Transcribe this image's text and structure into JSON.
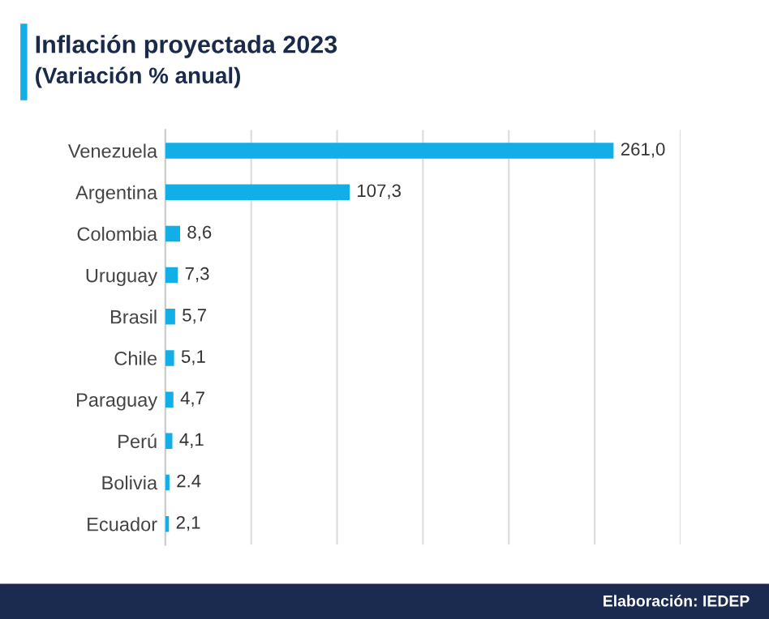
{
  "chart_data": {
    "type": "bar",
    "orientation": "horizontal",
    "title": "Inflación proyectada 2023",
    "subtitle": "(Variación % anual)",
    "categories": [
      "Venezuela",
      "Argentina",
      "Colombia",
      "Uruguay",
      "Brasil",
      "Chile",
      "Paraguay",
      "Perú",
      "Bolivia",
      "Ecuador"
    ],
    "values": [
      261.0,
      107.3,
      8.6,
      7.3,
      5.7,
      5.1,
      4.7,
      4.1,
      2.4,
      2.1
    ],
    "value_labels": [
      "261,0",
      "107,3",
      "8,6",
      "7,3",
      "5,7",
      "5,1",
      "4,7",
      "4,1",
      "2.4",
      "2,1"
    ],
    "color": "#12aee8",
    "xlim": [
      0,
      300
    ],
    "xticks": [
      {
        "value": 0,
        "label": null
      },
      {
        "value": 50,
        "label": null
      },
      {
        "value": 100,
        "label": null
      },
      {
        "value": 150,
        "label": null
      },
      {
        "value": 200,
        "label": null
      },
      {
        "value": 250,
        "label": null
      },
      {
        "value": 300,
        "label": null
      }
    ],
    "tick_labels": "y",
    "grid": "x",
    "annotations": [
      "Elaboración: IEDEP"
    ]
  }
}
